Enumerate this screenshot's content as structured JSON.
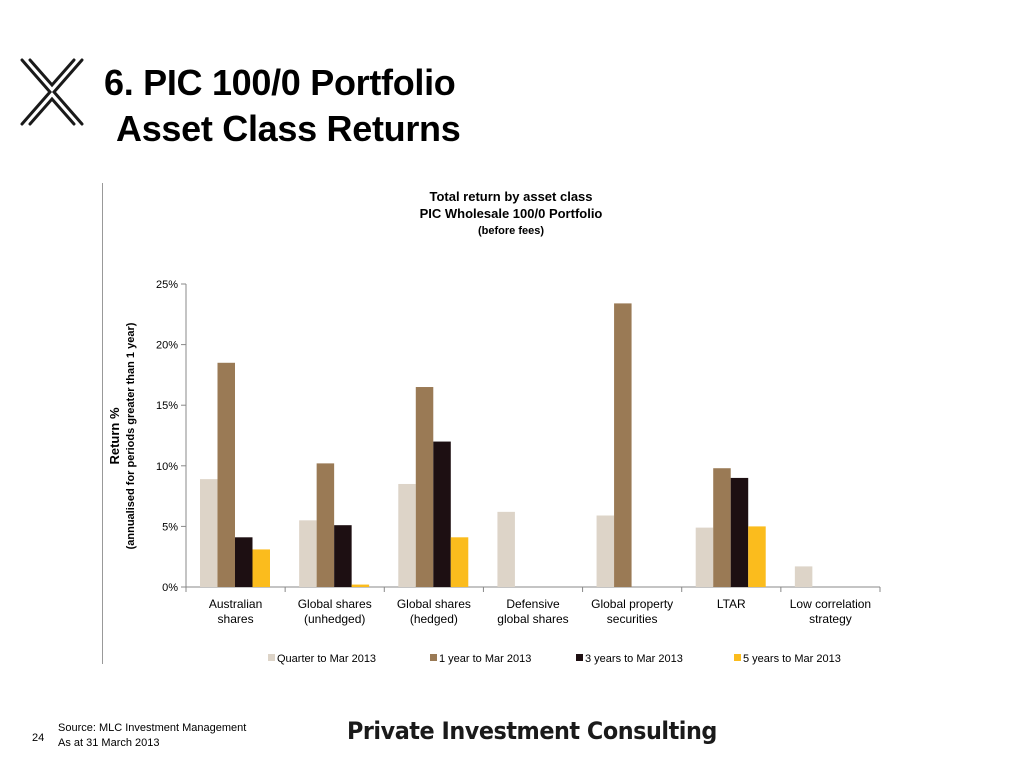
{
  "slide": {
    "title_line1": "6. PIC 100/0 Portfolio",
    "title_line2": "Asset Class Returns",
    "logo_icon": "x-logo-icon",
    "page_number": "24",
    "source_line1": "Source: MLC Investment Management",
    "source_line2": "As at 31 March 2013",
    "brand": "Private Investment Consulting"
  },
  "chart_data": {
    "type": "bar",
    "title": [
      "Total return by asset class",
      "PIC Wholesale 100/0 Portfolio",
      "(before fees)"
    ],
    "ylabel": [
      "Return %",
      "(annualised for periods greater than 1 year)"
    ],
    "xlabel": "",
    "ylim": [
      0,
      25
    ],
    "yticks": [
      0,
      5,
      10,
      15,
      20,
      25
    ],
    "ytick_labels": [
      "0%",
      "5%",
      "10%",
      "15%",
      "20%",
      "25%"
    ],
    "grid": false,
    "legend_position": "bottom",
    "categories": [
      [
        "Australian",
        "shares"
      ],
      [
        "Global shares",
        "(unhedged)"
      ],
      [
        "Global shares",
        "(hedged)"
      ],
      [
        "Defensive",
        "global shares"
      ],
      [
        "Global property",
        "securities"
      ],
      [
        "LTAR"
      ],
      [
        "Low correlation",
        "strategy"
      ]
    ],
    "series": [
      {
        "name": "Quarter to  Mar 2013",
        "color": "#ddd4c8",
        "values": [
          8.9,
          5.5,
          8.5,
          6.2,
          5.9,
          4.9,
          1.7
        ]
      },
      {
        "name": "1 year to Mar 2013",
        "color": "#9a7a55",
        "values": [
          18.5,
          10.2,
          16.5,
          null,
          23.4,
          9.8,
          null
        ]
      },
      {
        "name": "3 years to Mar 2013",
        "color": "#1d0f12",
        "values": [
          4.1,
          5.1,
          12.0,
          null,
          null,
          9.0,
          null
        ]
      },
      {
        "name": "5 years to Mar 2013",
        "color": "#fbbc1d",
        "values": [
          3.1,
          0.2,
          4.1,
          null,
          null,
          5.0,
          null
        ]
      }
    ]
  }
}
